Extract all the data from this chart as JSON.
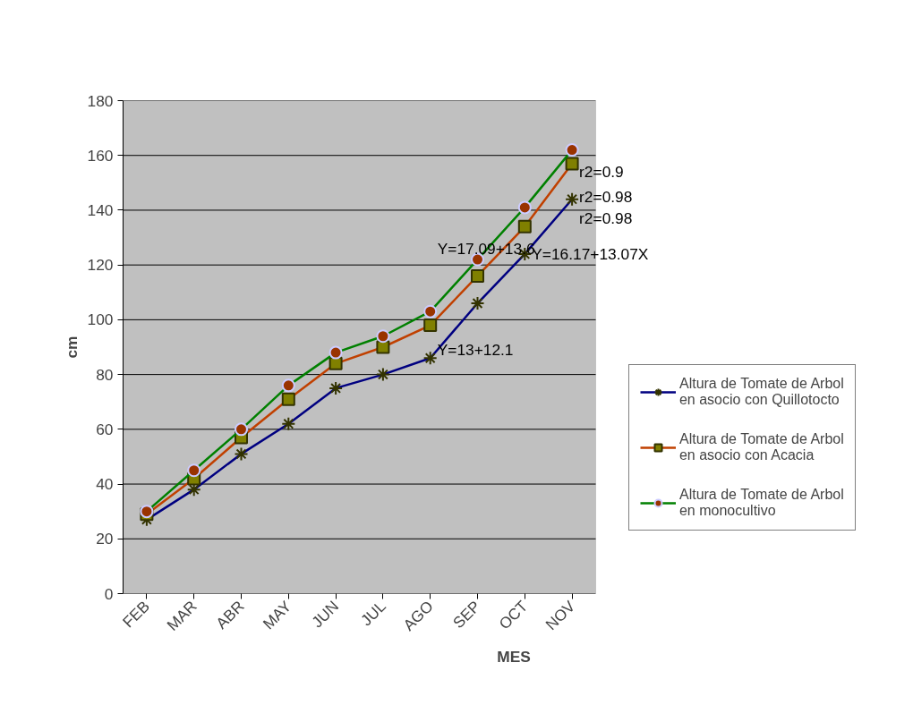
{
  "chart_data": {
    "type": "line",
    "xlabel": "MES",
    "ylabel": "cm",
    "categories": [
      "FEB",
      "MAR",
      "ABR",
      "MAY",
      "JUN",
      "JUL",
      "AGO",
      "SEP",
      "OCT",
      "NOV"
    ],
    "series": [
      {
        "name": "Altura de Tomate de Arbol\nen asocio con Quillotocto",
        "color": "#000080",
        "marker": "cross",
        "values": [
          27,
          38,
          51,
          62,
          75,
          80,
          86,
          106,
          124,
          144
        ]
      },
      {
        "name": "Altura de Tomate de Arbol\nen asocio con Acacia",
        "color": "#c04000",
        "marker": "square",
        "values": [
          29,
          42,
          57,
          71,
          84,
          90,
          98,
          116,
          134,
          157
        ]
      },
      {
        "name": "Altura de Tomate de Arbol\nen monocultivo",
        "color": "#008000",
        "marker": "circle",
        "values": [
          30,
          45,
          60,
          76,
          88,
          94,
          103,
          122,
          141,
          162
        ]
      }
    ],
    "ylim": [
      0,
      180
    ],
    "yticks": [
      0,
      20,
      40,
      60,
      80,
      100,
      120,
      140,
      160,
      180
    ],
    "grid": "y",
    "legend": "right",
    "annotations": [
      {
        "text": "r2=0.9",
        "x": "NOV",
        "y": 154
      },
      {
        "text": "r2=0.98",
        "x": "NOV",
        "y": 145
      },
      "r2=0.98",
      "Y=17.09+13.6",
      {
        "text": "Y=16.17+13.07X",
        "x": "OCT",
        "y": 124
      },
      {
        "text": "Y=13+12.1",
        "x": "AGO",
        "y": 89
      }
    ]
  }
}
